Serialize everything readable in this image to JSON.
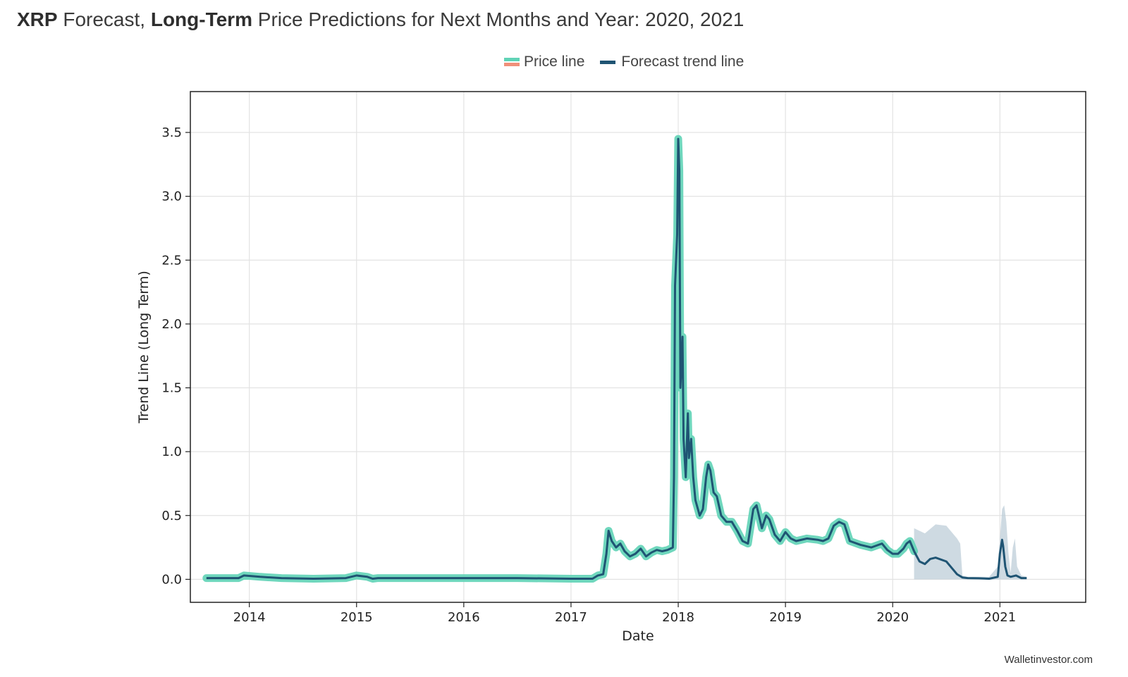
{
  "page": {
    "title_parts": [
      {
        "text": "XRP",
        "bold": true
      },
      {
        "text": " Forecast, ",
        "bold": false
      },
      {
        "text": "Long-Term",
        "bold": true
      },
      {
        "text": " Price Predictions for Next Months and Year: 2020, 2021",
        "bold": false
      }
    ],
    "watermark": "Walletinvestor.com"
  },
  "colors": {
    "price_line": "#5fd3b6",
    "price_line_alt": "#f0907a",
    "forecast_line": "#1f5473",
    "confidence_band": "#b9cbd6",
    "grid": "#e3e3e3"
  },
  "chart_data": {
    "type": "line",
    "xlabel": "Date",
    "ylabel": "Trend Line (Long Term)",
    "xlim": [
      2013.45,
      2021.8
    ],
    "ylim": [
      -0.18,
      3.82
    ],
    "x_ticks": [
      2014,
      2015,
      2016,
      2017,
      2018,
      2019,
      2020,
      2021
    ],
    "x_tick_labels": [
      "2014",
      "2015",
      "2016",
      "2017",
      "2018",
      "2019",
      "2020",
      "2021"
    ],
    "y_ticks": [
      0.0,
      0.5,
      1.0,
      1.5,
      2.0,
      2.5,
      3.0,
      3.5
    ],
    "y_tick_labels": [
      "0.0",
      "0.5",
      "1.0",
      "1.5",
      "2.0",
      "2.5",
      "3.0",
      "3.5"
    ],
    "grid": true,
    "legend_position": "top-center",
    "legend": [
      "Price line",
      "Forecast trend line"
    ],
    "series": [
      {
        "name": "Price line",
        "x": [
          2013.6,
          2013.75,
          2013.9,
          2013.95,
          2014.1,
          2014.3,
          2014.6,
          2014.9,
          2015.0,
          2015.1,
          2015.15,
          2015.2,
          2015.5,
          2016.0,
          2016.5,
          2017.0,
          2017.2,
          2017.25,
          2017.3,
          2017.33,
          2017.35,
          2017.38,
          2017.42,
          2017.46,
          2017.5,
          2017.55,
          2017.6,
          2017.65,
          2017.7,
          2017.75,
          2017.8,
          2017.85,
          2017.9,
          2017.95,
          2017.96,
          2017.97,
          2017.99,
          2018.0,
          2018.01,
          2018.02,
          2018.04,
          2018.05,
          2018.07,
          2018.09,
          2018.1,
          2018.12,
          2018.14,
          2018.16,
          2018.2,
          2018.23,
          2018.26,
          2018.28,
          2018.3,
          2018.33,
          2018.36,
          2018.4,
          2018.45,
          2018.5,
          2018.55,
          2018.6,
          2018.65,
          2018.7,
          2018.73,
          2018.78,
          2018.82,
          2018.85,
          2018.9,
          2018.95,
          2019.0,
          2019.05,
          2019.1,
          2019.2,
          2019.3,
          2019.35,
          2019.4,
          2019.45,
          2019.5,
          2019.55,
          2019.6,
          2019.7,
          2019.8,
          2019.9,
          2019.95,
          2020.0,
          2020.05,
          2020.1,
          2020.13,
          2020.16,
          2020.2
        ],
        "values": [
          0.01,
          0.01,
          0.01,
          0.03,
          0.02,
          0.01,
          0.005,
          0.01,
          0.03,
          0.02,
          0.005,
          0.01,
          0.01,
          0.01,
          0.01,
          0.005,
          0.005,
          0.03,
          0.04,
          0.2,
          0.38,
          0.3,
          0.25,
          0.28,
          0.22,
          0.18,
          0.2,
          0.24,
          0.18,
          0.21,
          0.23,
          0.22,
          0.23,
          0.25,
          0.8,
          2.3,
          2.7,
          3.45,
          3.2,
          1.5,
          1.9,
          1.1,
          0.8,
          1.3,
          0.95,
          1.1,
          0.8,
          0.62,
          0.5,
          0.55,
          0.8,
          0.9,
          0.85,
          0.68,
          0.65,
          0.5,
          0.45,
          0.45,
          0.38,
          0.3,
          0.28,
          0.55,
          0.58,
          0.4,
          0.5,
          0.47,
          0.35,
          0.3,
          0.37,
          0.32,
          0.3,
          0.32,
          0.31,
          0.3,
          0.32,
          0.42,
          0.45,
          0.43,
          0.3,
          0.27,
          0.25,
          0.28,
          0.23,
          0.2,
          0.2,
          0.24,
          0.28,
          0.3,
          0.22
        ]
      },
      {
        "name": "Forecast trend line",
        "x": [
          2020.2,
          2020.25,
          2020.3,
          2020.35,
          2020.4,
          2020.5,
          2020.55,
          2020.6,
          2020.65,
          2020.7,
          2020.8,
          2020.9,
          2020.98,
          2021.0,
          2021.02,
          2021.03,
          2021.05,
          2021.07,
          2021.1,
          2021.15,
          2021.2,
          2021.25
        ],
        "values": [
          0.22,
          0.14,
          0.12,
          0.16,
          0.17,
          0.14,
          0.09,
          0.04,
          0.015,
          0.01,
          0.008,
          0.005,
          0.02,
          0.2,
          0.31,
          0.26,
          0.1,
          0.03,
          0.02,
          0.03,
          0.01,
          0.01
        ]
      }
    ],
    "confidence_band": {
      "x": [
        2020.2,
        2020.3,
        2020.4,
        2020.5,
        2020.6,
        2020.63,
        2020.65,
        2020.7,
        2020.9,
        2020.98,
        2021.02,
        2021.04,
        2021.06,
        2021.08,
        2021.1,
        2021.12,
        2021.14,
        2021.16,
        2021.2,
        2021.25
      ],
      "upper": [
        0.4,
        0.36,
        0.43,
        0.42,
        0.32,
        0.28,
        0.03,
        0.02,
        0.02,
        0.1,
        0.55,
        0.58,
        0.45,
        0.2,
        0.05,
        0.25,
        0.32,
        0.1,
        0.03,
        0.02
      ],
      "lower": [
        0.0,
        0.0,
        0.0,
        0.0,
        0.0,
        0.0,
        0.0,
        0.0,
        0.0,
        0.0,
        0.0,
        0.0,
        0.0,
        0.0,
        0.0,
        0.0,
        0.0,
        0.0,
        0.0,
        0.0
      ]
    }
  }
}
